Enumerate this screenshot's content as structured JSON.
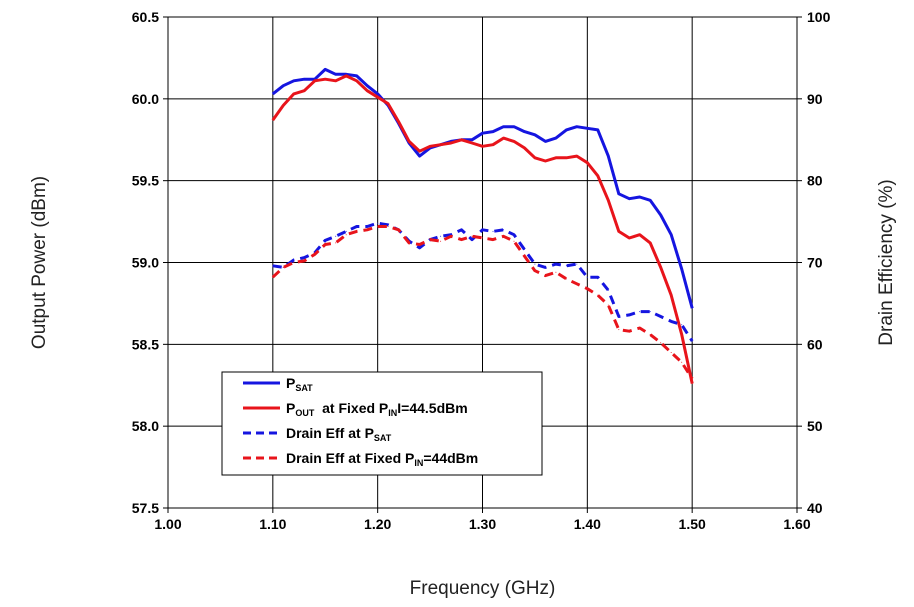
{
  "chart_data": {
    "type": "line",
    "xlabel": "Frequency (GHz)",
    "ylabel": "Output Power (dBm)",
    "y2label": "Drain Efficiency (%)",
    "xlim": [
      1.0,
      1.6
    ],
    "ylim": [
      57.5,
      60.5
    ],
    "y2lim": [
      40,
      100
    ],
    "x_ticks": [
      "1.00",
      "1.10",
      "1.20",
      "1.30",
      "1.40",
      "1.50",
      "1.60"
    ],
    "y_ticks": [
      "57.5",
      "58.0",
      "58.5",
      "59.0",
      "59.5",
      "60.0",
      "60.5"
    ],
    "y2_ticks": [
      "40",
      "50",
      "60",
      "70",
      "80",
      "90",
      "100"
    ],
    "grid": true,
    "legend_position": "bottom-left",
    "series": [
      {
        "name": "P_SAT",
        "axis": "left",
        "color": "#1515e0",
        "style": "solid",
        "points": [
          [
            1.1,
            60.03
          ],
          [
            1.11,
            60.08
          ],
          [
            1.12,
            60.11
          ],
          [
            1.13,
            60.12
          ],
          [
            1.14,
            60.12
          ],
          [
            1.15,
            60.18
          ],
          [
            1.16,
            60.15
          ],
          [
            1.17,
            60.15
          ],
          [
            1.18,
            60.14
          ],
          [
            1.19,
            60.08
          ],
          [
            1.2,
            60.03
          ],
          [
            1.21,
            59.96
          ],
          [
            1.22,
            59.85
          ],
          [
            1.23,
            59.73
          ],
          [
            1.24,
            59.65
          ],
          [
            1.25,
            59.7
          ],
          [
            1.26,
            59.72
          ],
          [
            1.27,
            59.74
          ],
          [
            1.28,
            59.75
          ],
          [
            1.29,
            59.75
          ],
          [
            1.3,
            59.79
          ],
          [
            1.31,
            59.8
          ],
          [
            1.32,
            59.83
          ],
          [
            1.33,
            59.83
          ],
          [
            1.34,
            59.8
          ],
          [
            1.35,
            59.78
          ],
          [
            1.36,
            59.74
          ],
          [
            1.37,
            59.76
          ],
          [
            1.38,
            59.81
          ],
          [
            1.39,
            59.83
          ],
          [
            1.4,
            59.82
          ],
          [
            1.41,
            59.81
          ],
          [
            1.42,
            59.65
          ],
          [
            1.43,
            59.42
          ],
          [
            1.44,
            59.39
          ],
          [
            1.45,
            59.4
          ],
          [
            1.46,
            59.38
          ],
          [
            1.47,
            59.29
          ],
          [
            1.48,
            59.17
          ],
          [
            1.49,
            58.96
          ],
          [
            1.5,
            58.72
          ]
        ]
      },
      {
        "name": "P_OUT at Fixed P_IN=44.5dBm",
        "axis": "left",
        "color": "#e8141b",
        "style": "solid",
        "points": [
          [
            1.1,
            59.87
          ],
          [
            1.11,
            59.96
          ],
          [
            1.12,
            60.03
          ],
          [
            1.13,
            60.05
          ],
          [
            1.14,
            60.11
          ],
          [
            1.15,
            60.12
          ],
          [
            1.16,
            60.11
          ],
          [
            1.17,
            60.14
          ],
          [
            1.18,
            60.11
          ],
          [
            1.19,
            60.05
          ],
          [
            1.2,
            60.01
          ],
          [
            1.21,
            59.97
          ],
          [
            1.22,
            59.86
          ],
          [
            1.23,
            59.74
          ],
          [
            1.24,
            59.68
          ],
          [
            1.25,
            59.71
          ],
          [
            1.26,
            59.72
          ],
          [
            1.27,
            59.73
          ],
          [
            1.28,
            59.75
          ],
          [
            1.29,
            59.73
          ],
          [
            1.3,
            59.71
          ],
          [
            1.31,
            59.72
          ],
          [
            1.32,
            59.76
          ],
          [
            1.33,
            59.74
          ],
          [
            1.34,
            59.7
          ],
          [
            1.35,
            59.64
          ],
          [
            1.36,
            59.62
          ],
          [
            1.37,
            59.64
          ],
          [
            1.38,
            59.64
          ],
          [
            1.39,
            59.65
          ],
          [
            1.4,
            59.61
          ],
          [
            1.41,
            59.53
          ],
          [
            1.42,
            59.38
          ],
          [
            1.43,
            59.19
          ],
          [
            1.44,
            59.15
          ],
          [
            1.45,
            59.17
          ],
          [
            1.46,
            59.12
          ],
          [
            1.47,
            58.97
          ],
          [
            1.48,
            58.8
          ],
          [
            1.49,
            58.56
          ],
          [
            1.5,
            58.26
          ]
        ]
      },
      {
        "name": "Drain Eff at P_SAT",
        "axis": "right",
        "color": "#1515e0",
        "style": "dashed",
        "points": [
          [
            1.1,
            69.6
          ],
          [
            1.11,
            69.4
          ],
          [
            1.12,
            70.3
          ],
          [
            1.13,
            70.6
          ],
          [
            1.14,
            71.2
          ],
          [
            1.15,
            72.7
          ],
          [
            1.16,
            73.2
          ],
          [
            1.17,
            73.8
          ],
          [
            1.18,
            74.4
          ],
          [
            1.19,
            74.4
          ],
          [
            1.2,
            74.8
          ],
          [
            1.21,
            74.6
          ],
          [
            1.22,
            74.0
          ],
          [
            1.23,
            72.6
          ],
          [
            1.24,
            71.8
          ],
          [
            1.25,
            72.8
          ],
          [
            1.26,
            73.2
          ],
          [
            1.27,
            73.4
          ],
          [
            1.28,
            74.0
          ],
          [
            1.29,
            72.8
          ],
          [
            1.3,
            74.0
          ],
          [
            1.31,
            73.8
          ],
          [
            1.32,
            74.0
          ],
          [
            1.33,
            73.4
          ],
          [
            1.34,
            71.6
          ],
          [
            1.35,
            69.8
          ],
          [
            1.36,
            69.4
          ],
          [
            1.37,
            69.8
          ],
          [
            1.38,
            69.6
          ],
          [
            1.39,
            69.8
          ],
          [
            1.4,
            68.2
          ],
          [
            1.41,
            68.2
          ],
          [
            1.42,
            66.6
          ],
          [
            1.43,
            63.4
          ],
          [
            1.44,
            63.6
          ],
          [
            1.45,
            64.0
          ],
          [
            1.46,
            64.0
          ],
          [
            1.47,
            63.4
          ],
          [
            1.48,
            62.8
          ],
          [
            1.49,
            62.4
          ],
          [
            1.5,
            60.4
          ]
        ]
      },
      {
        "name": "Drain Eff at Fixed P_IN=44dBm",
        "axis": "right",
        "color": "#e8141b",
        "style": "dashed",
        "points": [
          [
            1.1,
            68.2
          ],
          [
            1.11,
            69.4
          ],
          [
            1.12,
            70.0
          ],
          [
            1.13,
            70.2
          ],
          [
            1.14,
            71.0
          ],
          [
            1.15,
            72.2
          ],
          [
            1.16,
            72.4
          ],
          [
            1.17,
            73.4
          ],
          [
            1.18,
            73.8
          ],
          [
            1.19,
            74.0
          ],
          [
            1.2,
            74.4
          ],
          [
            1.21,
            74.4
          ],
          [
            1.22,
            74.0
          ],
          [
            1.23,
            72.4
          ],
          [
            1.24,
            72.2
          ],
          [
            1.25,
            72.8
          ],
          [
            1.26,
            72.6
          ],
          [
            1.27,
            73.2
          ],
          [
            1.28,
            72.8
          ],
          [
            1.29,
            73.2
          ],
          [
            1.3,
            73.0
          ],
          [
            1.31,
            72.8
          ],
          [
            1.32,
            73.2
          ],
          [
            1.33,
            72.6
          ],
          [
            1.34,
            70.8
          ],
          [
            1.35,
            69.0
          ],
          [
            1.36,
            68.4
          ],
          [
            1.37,
            68.8
          ],
          [
            1.38,
            68.0
          ],
          [
            1.39,
            67.4
          ],
          [
            1.4,
            66.8
          ],
          [
            1.41,
            66.0
          ],
          [
            1.42,
            64.8
          ],
          [
            1.43,
            61.8
          ],
          [
            1.44,
            61.6
          ],
          [
            1.45,
            62.0
          ],
          [
            1.46,
            61.2
          ],
          [
            1.47,
            60.2
          ],
          [
            1.48,
            59.0
          ],
          [
            1.49,
            57.8
          ],
          [
            1.5,
            55.8
          ]
        ]
      }
    ],
    "legend": [
      {
        "main": "P",
        "sub": "SAT",
        "rest": "",
        "sub2": "",
        "tail": ""
      },
      {
        "main": "P",
        "sub": "OUT",
        "rest": "  at Fixed P",
        "sub2": "IN",
        "tail": "I=44.5dBm"
      },
      {
        "main": "Drain Eff at P",
        "sub": "SAT",
        "rest": "",
        "sub2": "",
        "tail": ""
      },
      {
        "main": "Drain Eff at Fixed P",
        "sub": "IN",
        "rest": "=44dBm",
        "sub2": "",
        "tail": ""
      }
    ]
  }
}
